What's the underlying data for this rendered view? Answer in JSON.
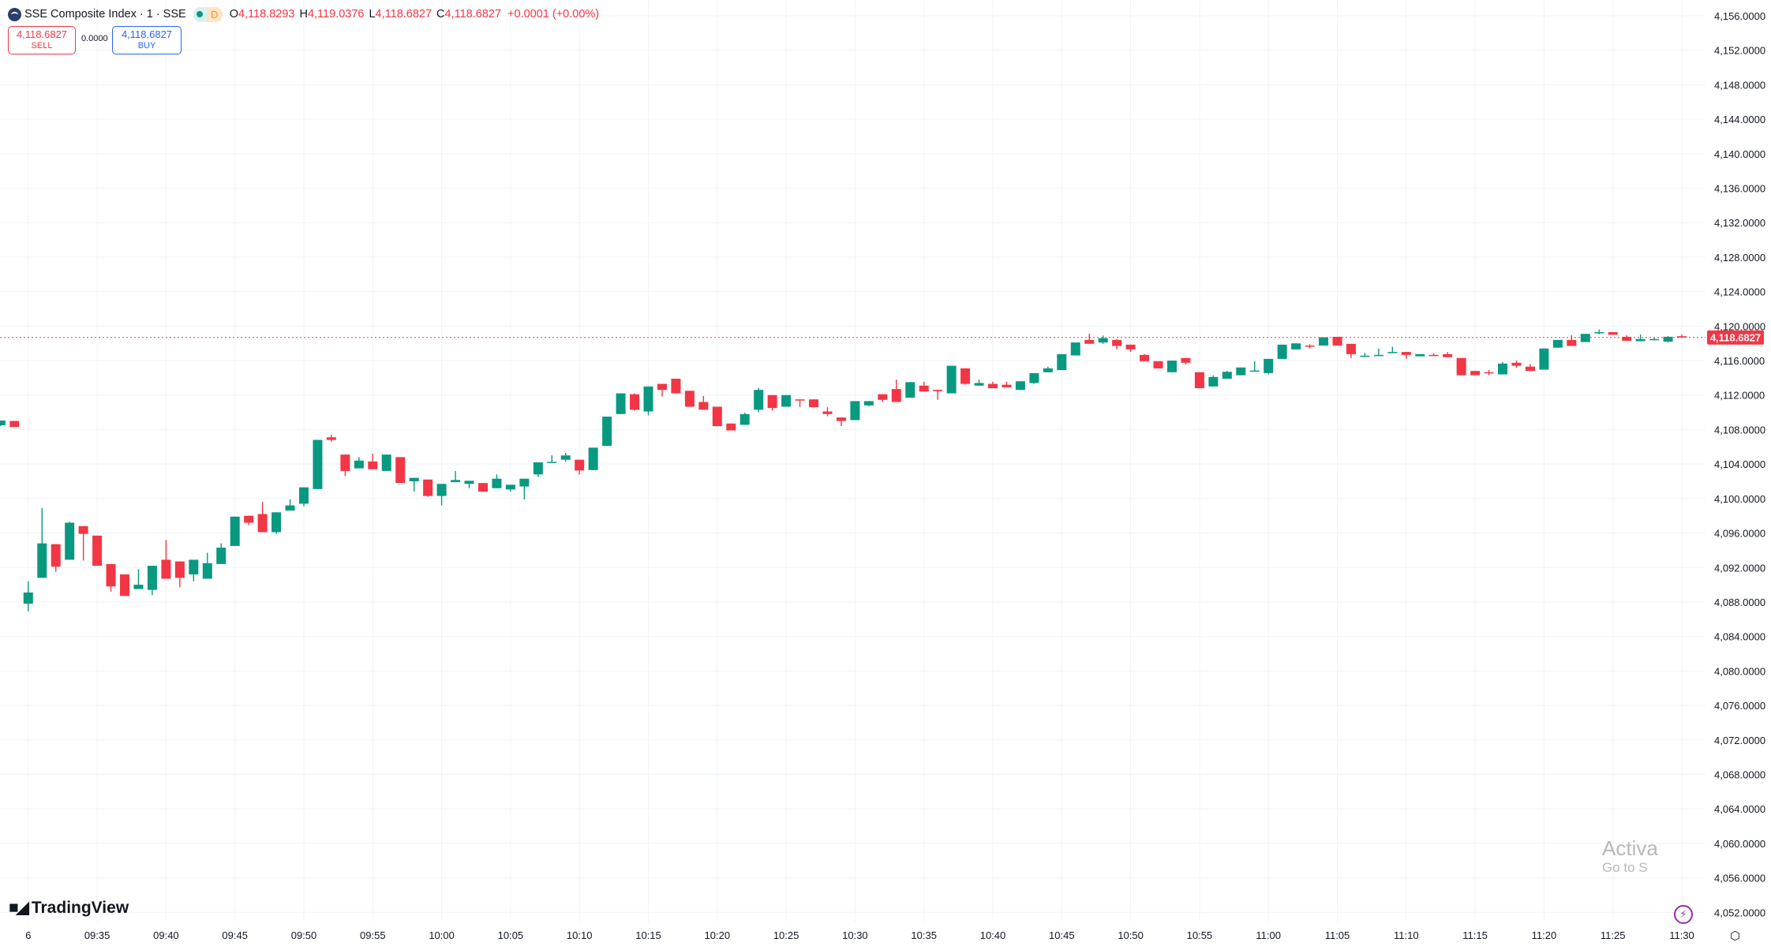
{
  "legend": {
    "title": "SSE Composite Index · 1 · SSE",
    "badge": "D",
    "open_label": "O",
    "open": "4,118.8293",
    "high_label": "H",
    "high": "4,119.0376",
    "low_label": "L",
    "low": "4,118.6827",
    "close_label": "C",
    "close": "4,118.6827",
    "change": "+0.0001 (+0.00%)"
  },
  "trade": {
    "sell_price": "4,118.6827",
    "sell_label": "SELL",
    "spread": "0.0000",
    "buy_price": "4,118.6827",
    "buy_label": "BUY"
  },
  "logo": {
    "mark": "17",
    "text": "TradingView"
  },
  "watermark": {
    "line1": "Activa",
    "line2": "Go to S"
  },
  "colors": {
    "up": "#089981",
    "down": "#F23645",
    "grid": "#f0f3fa",
    "last_price": "#F23645"
  },
  "icons": {
    "bolt": "lightning-icon",
    "settings": "settings-hexagon-icon"
  },
  "chart_data": {
    "type": "candlestick",
    "title": "SSE Composite Index · 1 · SSE",
    "interval": "1 minute",
    "ylim": [
      4050,
      4157
    ],
    "y_ticks": [
      "4,156.0000",
      "4,152.0000",
      "4,148.0000",
      "4,144.0000",
      "4,140.0000",
      "4,136.0000",
      "4,132.0000",
      "4,128.0000",
      "4,124.0000",
      "4,120.0000",
      "4,116.0000",
      "4,112.0000",
      "4,108.0000",
      "4,104.0000",
      "4,100.0000",
      "4,096.0000",
      "4,092.0000",
      "4,088.0000",
      "4,084.0000",
      "4,080.0000",
      "4,076.0000",
      "4,072.0000",
      "4,068.0000",
      "4,064.0000",
      "4,060.0000",
      "4,056.0000",
      "4,052.0000"
    ],
    "x_ticks": [
      "6",
      "09:35",
      "09:40",
      "09:45",
      "09:50",
      "09:55",
      "10:00",
      "10:05",
      "10:10",
      "10:15",
      "10:20",
      "10:25",
      "10:30",
      "10:35",
      "10:40",
      "10:45",
      "10:50",
      "10:55",
      "11:00",
      "11:05",
      "11:10",
      "11:15",
      "11:20",
      "11:25",
      "11:30"
    ],
    "last_price": 4118.6827,
    "last_price_label": "4,118.6827",
    "previous_session_candles": [
      [
        4108.5,
        4109.05,
        4108.4,
        4109.05
      ],
      [
        4109.0,
        4109.0,
        4108.3,
        4108.3
      ]
    ],
    "candles": [
      [
        4087.8,
        4090.4,
        4086.9,
        4089.1
      ],
      [
        4090.8,
        4098.9,
        4090.8,
        4094.8
      ],
      [
        4094.7,
        4094.7,
        4091.5,
        4092.1
      ],
      [
        4092.9,
        4097.3,
        4092.9,
        4097.2
      ],
      [
        4096.8,
        4096.8,
        4092.8,
        4095.9
      ],
      [
        4095.7,
        4095.7,
        4092.2,
        4092.2
      ],
      [
        4092.4,
        4092.4,
        4089.2,
        4089.8
      ],
      [
        4091.2,
        4091.2,
        4088.7,
        4088.7
      ],
      [
        4089.5,
        4091.8,
        4089.5,
        4090.0
      ],
      [
        4089.4,
        4092.2,
        4088.8,
        4092.2
      ],
      [
        4092.9,
        4095.2,
        4090.7,
        4090.7
      ],
      [
        4092.7,
        4092.7,
        4089.7,
        4090.8
      ],
      [
        4091.2,
        4092.9,
        4090.4,
        4092.9
      ],
      [
        4090.7,
        4093.7,
        4090.7,
        4092.5
      ],
      [
        4092.4,
        4094.8,
        4092.4,
        4094.3
      ],
      [
        4094.5,
        4097.9,
        4094.5,
        4097.9
      ],
      [
        4098.0,
        4098.0,
        4096.9,
        4097.2
      ],
      [
        4098.2,
        4099.6,
        4096.1,
        4096.1
      ],
      [
        4096.1,
        4098.4,
        4095.9,
        4098.4
      ],
      [
        4098.6,
        4099.9,
        4098.6,
        4099.2
      ],
      [
        4099.4,
        4101.3,
        4099.1,
        4101.3
      ],
      [
        4101.1,
        4106.8,
        4101.1,
        4106.8
      ],
      [
        4107.1,
        4107.4,
        4106.6,
        4106.8
      ],
      [
        4105.1,
        4105.1,
        4102.6,
        4103.2
      ],
      [
        4103.5,
        4104.8,
        4103.5,
        4104.4
      ],
      [
        4104.3,
        4105.2,
        4103.4,
        4103.4
      ],
      [
        4103.2,
        4105.1,
        4103.2,
        4105.1
      ],
      [
        4104.8,
        4104.8,
        4101.8,
        4101.8
      ],
      [
        4102.0,
        4102.4,
        4100.8,
        4102.4
      ],
      [
        4102.2,
        4102.2,
        4100.2,
        4100.3
      ],
      [
        4100.3,
        4101.7,
        4099.2,
        4101.7
      ],
      [
        4101.9,
        4103.2,
        4101.9,
        4102.15
      ],
      [
        4101.7,
        4102.06,
        4101.2,
        4102.06
      ],
      [
        4101.8,
        4101.8,
        4100.8,
        4100.8
      ],
      [
        4101.2,
        4102.8,
        4101.2,
        4102.3
      ],
      [
        4101.05,
        4101.6,
        4100.8,
        4101.6
      ],
      [
        4101.4,
        4102.3,
        4099.9,
        4102.3
      ],
      [
        4102.8,
        4104.2,
        4102.5,
        4104.2
      ],
      [
        4104.2,
        4105.0,
        4104.15,
        4104.25
      ],
      [
        4104.5,
        4105.3,
        4104.25,
        4105.0
      ],
      [
        4104.5,
        4104.5,
        4102.8,
        4103.25
      ],
      [
        4103.3,
        4105.9,
        4103.3,
        4105.9
      ],
      [
        4106.1,
        4109.5,
        4106.1,
        4109.5
      ],
      [
        4109.8,
        4112.2,
        4109.8,
        4112.2
      ],
      [
        4112.1,
        4112.2,
        4110.2,
        4110.3
      ],
      [
        4110.1,
        4113.0,
        4109.65,
        4113.0
      ],
      [
        4113.3,
        4113.3,
        4111.85,
        4112.6
      ],
      [
        4113.9,
        4113.9,
        4112.2,
        4112.2
      ],
      [
        4112.5,
        4112.5,
        4110.65,
        4110.65
      ],
      [
        4111.2,
        4111.9,
        4110.3,
        4110.3
      ],
      [
        4110.65,
        4110.65,
        4108.4,
        4108.4
      ],
      [
        4108.7,
        4108.7,
        4107.9,
        4107.9
      ],
      [
        4108.55,
        4109.95,
        4108.55,
        4109.8
      ],
      [
        4110.3,
        4112.85,
        4110.0,
        4112.6
      ],
      [
        4112.0,
        4112.0,
        4110.2,
        4110.5
      ],
      [
        4110.65,
        4112.0,
        4110.65,
        4112.0
      ],
      [
        4111.5,
        4111.5,
        4110.6,
        4111.4
      ],
      [
        4111.5,
        4111.5,
        4110.6,
        4110.6
      ],
      [
        4110.1,
        4110.6,
        4109.55,
        4109.8
      ],
      [
        4109.4,
        4109.4,
        4108.4,
        4109.0
      ],
      [
        4109.1,
        4111.3,
        4109.1,
        4111.3
      ],
      [
        4110.8,
        4111.3,
        4110.7,
        4111.3
      ],
      [
        4112.1,
        4112.1,
        4111.2,
        4111.45
      ],
      [
        4112.7,
        4113.8,
        4111.2,
        4111.2
      ],
      [
        4111.7,
        4113.5,
        4111.7,
        4113.5
      ],
      [
        4113.1,
        4113.55,
        4112.4,
        4112.4
      ],
      [
        4112.6,
        4112.6,
        4111.45,
        4112.45
      ],
      [
        4112.2,
        4115.4,
        4112.2,
        4115.4
      ],
      [
        4115.1,
        4115.1,
        4113.2,
        4113.3
      ],
      [
        4113.1,
        4113.8,
        4113.1,
        4113.4
      ],
      [
        4113.3,
        4113.55,
        4112.8,
        4112.8
      ],
      [
        4113.2,
        4113.55,
        4112.9,
        4112.9
      ],
      [
        4112.6,
        4113.6,
        4112.6,
        4113.6
      ],
      [
        4113.4,
        4114.55,
        4113.3,
        4114.55
      ],
      [
        4114.65,
        4115.3,
        4114.65,
        4115.1
      ],
      [
        4114.9,
        4116.75,
        4114.9,
        4116.75
      ],
      [
        4116.6,
        4118.1,
        4116.6,
        4118.1
      ],
      [
        4118.4,
        4119.1,
        4117.95,
        4117.95
      ],
      [
        4118.1,
        4118.9,
        4117.95,
        4118.6
      ],
      [
        4118.4,
        4118.5,
        4117.3,
        4117.7
      ],
      [
        4117.85,
        4117.85,
        4117.0,
        4117.3
      ],
      [
        4116.66,
        4116.75,
        4115.93,
        4115.93
      ],
      [
        4115.93,
        4115.93,
        4115.1,
        4115.1
      ],
      [
        4114.65,
        4116.0,
        4114.65,
        4116.0
      ],
      [
        4116.3,
        4116.3,
        4115.55,
        4115.75
      ],
      [
        4114.65,
        4114.65,
        4112.8,
        4112.8
      ],
      [
        4113.0,
        4114.3,
        4113.0,
        4114.1
      ],
      [
        4113.9,
        4114.8,
        4113.9,
        4114.7
      ],
      [
        4114.3,
        4115.2,
        4114.3,
        4115.2
      ],
      [
        4114.8,
        4115.9,
        4114.8,
        4114.85
      ],
      [
        4114.55,
        4116.2,
        4114.4,
        4116.2
      ],
      [
        4116.2,
        4117.85,
        4116.2,
        4117.85
      ],
      [
        4117.3,
        4118.0,
        4117.3,
        4118.0
      ],
      [
        4117.75,
        4117.9,
        4117.4,
        4117.7
      ],
      [
        4117.75,
        4118.7,
        4117.75,
        4118.7
      ],
      [
        4118.76,
        4118.76,
        4117.75,
        4117.75
      ],
      [
        4117.94,
        4117.94,
        4116.3,
        4116.75
      ],
      [
        4116.5,
        4116.9,
        4116.5,
        4116.57
      ],
      [
        4116.6,
        4117.4,
        4116.6,
        4116.66
      ],
      [
        4116.93,
        4117.6,
        4116.93,
        4117.0
      ],
      [
        4117.0,
        4117.0,
        4116.2,
        4116.66
      ],
      [
        4116.5,
        4116.75,
        4116.5,
        4116.75
      ],
      [
        4116.66,
        4116.85,
        4116.6,
        4116.6
      ],
      [
        4116.75,
        4117.0,
        4116.4,
        4116.4
      ],
      [
        4116.3,
        4116.3,
        4114.3,
        4114.3
      ],
      [
        4114.8,
        4114.8,
        4114.3,
        4114.3
      ],
      [
        4114.65,
        4114.9,
        4114.3,
        4114.6
      ],
      [
        4114.4,
        4115.85,
        4114.4,
        4115.65
      ],
      [
        4115.75,
        4116.0,
        4115.15,
        4115.4
      ],
      [
        4115.3,
        4115.6,
        4114.8,
        4114.8
      ],
      [
        4114.95,
        4117.4,
        4114.95,
        4117.4
      ],
      [
        4117.5,
        4118.4,
        4117.5,
        4118.4
      ],
      [
        4118.4,
        4118.95,
        4117.7,
        4117.7
      ],
      [
        4118.15,
        4119.1,
        4118.15,
        4119.1
      ],
      [
        4119.25,
        4119.6,
        4119.05,
        4119.3
      ],
      [
        4119.3,
        4119.3,
        4119.0,
        4119.0
      ],
      [
        4118.76,
        4118.95,
        4118.3,
        4118.3
      ],
      [
        4118.25,
        4119.05,
        4118.25,
        4118.5
      ],
      [
        4118.43,
        4118.7,
        4118.35,
        4118.5
      ],
      [
        4118.2,
        4118.85,
        4118.1,
        4118.76
      ],
      [
        4118.8293,
        4119.0376,
        4118.6827,
        4118.6827
      ]
    ]
  }
}
